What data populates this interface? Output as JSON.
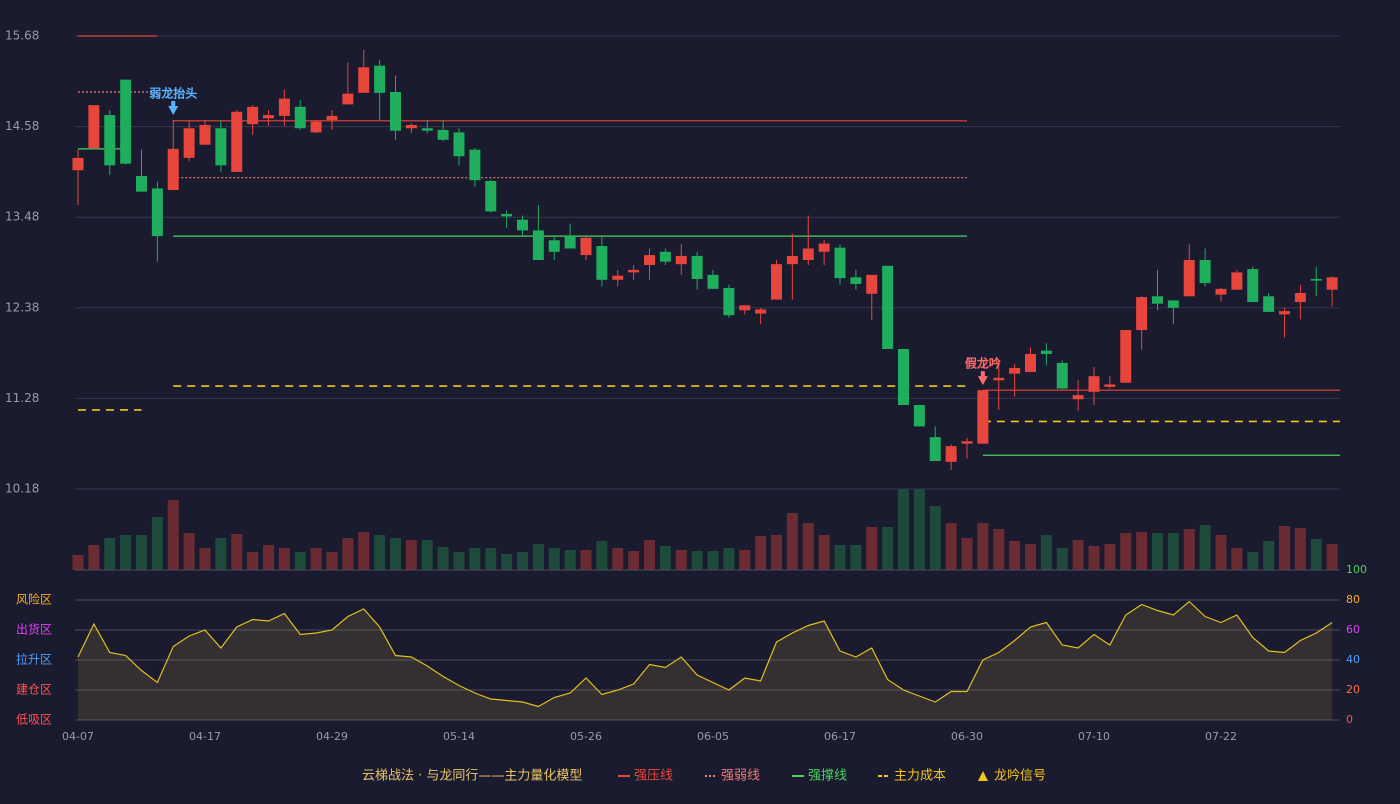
{
  "chart_data": [
    {
      "type": "candlestick",
      "categories": [
        "04-07",
        null,
        null,
        null,
        null,
        null,
        null,
        null,
        "04-17",
        null,
        null,
        null,
        null,
        null,
        null,
        null,
        "04-29",
        null,
        null,
        null,
        null,
        null,
        null,
        null,
        "05-14",
        null,
        null,
        null,
        null,
        null,
        null,
        null,
        "05-26",
        null,
        null,
        null,
        null,
        null,
        null,
        null,
        "06-05",
        null,
        null,
        null,
        null,
        null,
        null,
        null,
        "06-17",
        null,
        null,
        null,
        null,
        null,
        null,
        null,
        "06-30",
        null,
        null,
        null,
        null,
        null,
        null,
        null,
        "07-10",
        null,
        null,
        null,
        null,
        null,
        null,
        null,
        "07-22",
        null,
        null,
        null,
        null,
        null,
        null,
        null
      ],
      "open": [
        14.05,
        14.32,
        14.72,
        15.15,
        13.98,
        13.83,
        13.81,
        14.2,
        14.36,
        14.56,
        14.03,
        14.61,
        14.68,
        14.71,
        14.82,
        14.51,
        14.66,
        14.85,
        14.99,
        15.32,
        15.0,
        14.56,
        14.56,
        14.54,
        14.51,
        14.3,
        13.92,
        13.52,
        13.45,
        13.32,
        13.2,
        13.25,
        13.02,
        13.13,
        12.72,
        12.81,
        12.9,
        13.06,
        12.91,
        13.01,
        12.78,
        12.62,
        12.35,
        12.31,
        12.48,
        12.91,
        12.96,
        13.06,
        13.11,
        12.75,
        12.55,
        12.89,
        11.88,
        11.2,
        10.81,
        10.51,
        10.73,
        10.73,
        11.5,
        11.58,
        11.6,
        11.86,
        11.71,
        11.27,
        11.36,
        11.42,
        11.47,
        12.11,
        12.52,
        12.47,
        12.52,
        12.96,
        12.54,
        12.6,
        12.85,
        12.52,
        12.3,
        12.45,
        12.73,
        12.6
      ],
      "high": [
        14.3,
        14.84,
        14.78,
        15.15,
        14.3,
        13.91,
        14.66,
        14.66,
        14.66,
        14.66,
        14.78,
        14.84,
        14.78,
        15.03,
        14.9,
        14.66,
        14.78,
        15.36,
        15.51,
        15.39,
        15.2,
        14.62,
        14.66,
        14.66,
        14.56,
        14.32,
        13.93,
        13.56,
        13.5,
        13.63,
        13.25,
        13.4,
        13.25,
        13.25,
        12.84,
        12.9,
        13.1,
        13.1,
        13.15,
        13.06,
        12.84,
        12.66,
        12.41,
        12.38,
        12.96,
        13.28,
        13.5,
        13.2,
        13.15,
        12.84,
        12.78,
        12.89,
        11.88,
        11.2,
        10.94,
        10.72,
        10.8,
        11.38,
        11.74,
        11.7,
        11.9,
        11.95,
        11.74,
        11.5,
        11.66,
        11.55,
        12.11,
        12.52,
        12.84,
        12.47,
        13.15,
        13.1,
        12.62,
        12.84,
        12.88,
        12.56,
        12.38,
        12.66,
        12.88,
        12.76
      ],
      "low": [
        13.63,
        14.3,
        13.99,
        14.12,
        13.79,
        12.94,
        13.81,
        14.16,
        14.36,
        14.03,
        14.03,
        14.48,
        14.59,
        14.59,
        14.54,
        14.5,
        14.54,
        14.85,
        14.99,
        14.66,
        14.42,
        14.5,
        14.5,
        14.4,
        14.11,
        13.85,
        13.54,
        13.35,
        13.25,
        12.96,
        12.96,
        13.1,
        12.96,
        12.64,
        12.64,
        12.72,
        12.72,
        12.9,
        12.78,
        12.6,
        12.61,
        12.26,
        12.3,
        12.18,
        12.48,
        12.48,
        12.9,
        12.9,
        12.66,
        12.6,
        12.23,
        11.88,
        11.2,
        10.94,
        10.52,
        10.41,
        10.55,
        10.73,
        11.14,
        11.3,
        11.6,
        11.68,
        11.39,
        11.13,
        11.2,
        11.4,
        11.47,
        11.87,
        12.35,
        12.18,
        12.52,
        12.64,
        12.46,
        12.6,
        12.45,
        12.33,
        12.02,
        12.24,
        12.52,
        12.4
      ],
      "close": [
        14.2,
        14.84,
        14.11,
        14.13,
        13.79,
        13.25,
        14.31,
        14.56,
        14.6,
        14.11,
        14.76,
        14.82,
        14.72,
        14.92,
        14.56,
        14.64,
        14.71,
        14.98,
        15.3,
        14.99,
        14.53,
        14.6,
        14.53,
        14.42,
        14.22,
        13.93,
        13.55,
        13.49,
        13.32,
        12.96,
        13.06,
        13.1,
        13.23,
        12.72,
        12.77,
        12.84,
        13.02,
        12.94,
        13.01,
        12.73,
        12.61,
        12.29,
        12.41,
        12.36,
        12.91,
        13.01,
        13.1,
        13.16,
        12.74,
        12.67,
        12.78,
        11.88,
        11.2,
        10.94,
        10.52,
        10.7,
        10.76,
        11.38,
        11.53,
        11.65,
        11.82,
        11.82,
        11.4,
        11.32,
        11.55,
        11.45,
        12.11,
        12.51,
        12.43,
        12.38,
        12.96,
        12.68,
        12.61,
        12.81,
        12.45,
        12.33,
        12.34,
        12.56,
        12.71,
        12.75
      ],
      "up_color": "#e8453c",
      "down_color": "#1fad5e",
      "ylim": [
        10.18,
        15.68
      ],
      "yticks": [
        10.18,
        11.28,
        12.38,
        13.48,
        14.58,
        15.68
      ],
      "grid": true,
      "levels": [
        {
          "name": "强压线",
          "color": "#e8453c",
          "style": "solid",
          "segments": [
            {
              "from": 0,
              "to": 5,
              "value": 15.68
            },
            {
              "from": 6,
              "to": 56,
              "value": 14.65
            },
            {
              "from": 57,
              "to": 79,
              "value": 11.38
            }
          ]
        },
        {
          "name": "强弱线",
          "color": "#f07a78",
          "style": "dotted",
          "segments": [
            {
              "from": 0,
              "to": 5,
              "value": 15.0
            },
            {
              "from": 6,
              "to": 56,
              "value": 13.96
            }
          ]
        },
        {
          "name": "强撑线",
          "color": "#4fd060",
          "style": "solid",
          "segments": [
            {
              "from": 0,
              "to": 3,
              "value": 14.31
            },
            {
              "from": 6,
              "to": 56,
              "value": 13.25
            },
            {
              "from": 57,
              "to": 79,
              "value": 10.59
            }
          ]
        },
        {
          "name": "主力成本",
          "color": "#f5c518",
          "style": "dashed",
          "segments": [
            {
              "from": 0,
              "to": 4,
              "value": 11.14
            },
            {
              "from": 6,
              "to": 56,
              "value": 11.43
            },
            {
              "from": 57,
              "to": 79,
              "value": 11.0
            }
          ]
        }
      ],
      "signals": [
        {
          "label": "弱龙抬头",
          "index": 6,
          "color": "#5ab4ff"
        },
        {
          "label": "假龙吟",
          "index": 57,
          "color": "#ff6b6b"
        }
      ],
      "legend": {
        "title": "云梯战法 · 与龙同行——主力量化模型",
        "items": [
          {
            "name": "强压线",
            "color": "#e8453c",
            "style": "solid"
          },
          {
            "name": "强弱线",
            "color": "#f07a78",
            "style": "dotted"
          },
          {
            "name": "强撑线",
            "color": "#4fd060",
            "style": "solid"
          },
          {
            "name": "主力成本",
            "color": "#f5c518",
            "style": "dashed"
          },
          {
            "name": "龙吟信号",
            "color": "#f5c518",
            "style": "triangle"
          }
        ]
      }
    },
    {
      "type": "bar",
      "values": [
        15,
        25,
        32,
        35,
        35,
        53,
        70,
        37,
        22,
        32,
        36,
        18,
        25,
        22,
        18,
        22,
        18,
        32,
        38,
        35,
        32,
        30,
        30,
        23,
        18,
        22,
        22,
        16,
        18,
        26,
        22,
        20,
        20,
        29,
        22,
        19,
        30,
        24,
        20,
        19,
        19,
        22,
        20,
        34,
        35,
        57,
        47,
        35,
        25,
        25,
        43,
        43,
        81,
        81,
        64,
        47,
        32,
        47,
        41,
        29,
        26,
        35,
        22,
        30,
        24,
        26,
        37,
        38,
        37,
        37,
        41,
        45,
        35,
        22,
        18,
        29,
        44,
        42,
        31,
        26
      ],
      "ylim": [
        0,
        81
      ],
      "up_color": "#6b2b32",
      "down_color": "#1e4a3c"
    },
    {
      "type": "line",
      "values": [
        42,
        64,
        45,
        43,
        33,
        25,
        49,
        56,
        60,
        48,
        62,
        67,
        66,
        71,
        57,
        58,
        60,
        69,
        74,
        62,
        43,
        42,
        36,
        29,
        23,
        18,
        14,
        13,
        12,
        9,
        15,
        18,
        28,
        17,
        20,
        24,
        37,
        35,
        42,
        30,
        25,
        20,
        28,
        26,
        52,
        58,
        63,
        66,
        46,
        42,
        48,
        27,
        20,
        16,
        12,
        19,
        19,
        40,
        45,
        53,
        62,
        65,
        50,
        48,
        57,
        50,
        70,
        77,
        73,
        70,
        79,
        69,
        65,
        70,
        55,
        46,
        45,
        53,
        58,
        65
      ],
      "color": "#e0c020",
      "fill": "rgba(200,170,60,0.15)",
      "ylim": [
        0,
        100
      ],
      "yticks": [
        0,
        20,
        40,
        60,
        80,
        100
      ],
      "ytick_colors": [
        "#ff4d4d",
        "#ff7043",
        "#4d9fff",
        "#e040fb",
        "#ffa726",
        "#4fd060"
      ],
      "zones": [
        {
          "label": "风险区",
          "value": 80,
          "color": "#ffa726"
        },
        {
          "label": "出货区",
          "value": 60,
          "color": "#e040fb"
        },
        {
          "label": "拉升区",
          "value": 40,
          "color": "#4d9fff"
        },
        {
          "label": "建仓区",
          "value": 20,
          "color": "#ff5252"
        },
        {
          "label": "低吸区",
          "value": 0,
          "color": "#ff5252"
        }
      ],
      "grid": true
    }
  ]
}
